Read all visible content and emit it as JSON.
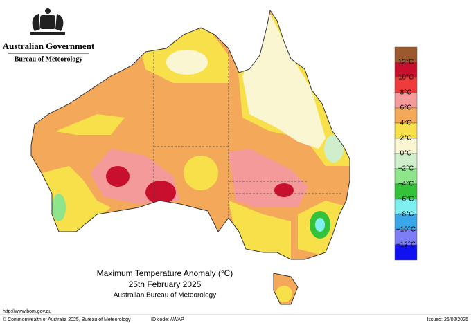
{
  "header": {
    "government": "Australian Government",
    "agency": "Bureau of Meteorology"
  },
  "map": {
    "title": "Maximum Temperature Anomaly (°C)",
    "date": "25th February 2025",
    "source": "Australian Bureau of Meteorology"
  },
  "legend": {
    "colors": [
      "#9b5a2e",
      "#c8102e",
      "#ee3b3b",
      "#f49a9a",
      "#f4a95a",
      "#f8e04a",
      "#fbf6d2",
      "#cfeecb",
      "#8ee58c",
      "#33c23a",
      "#7ff0f0",
      "#3aa8e8",
      "#7d7df5",
      "#1010f0"
    ],
    "labels": [
      "12°C",
      "10°C",
      "8°C",
      "6°C",
      "4°C",
      "2°C",
      "0°C",
      "−2°C",
      "−4°C",
      "−6°C",
      "−8°C",
      "−10°C",
      "−12°C"
    ]
  },
  "footer": {
    "url": "http://www.bom.gov.au",
    "copyright": "© Commonwealth of Australia 2025, Bureau of Meteorology",
    "id_code": "ID code: AWAP",
    "issued": "Issued: 26/02/2025"
  }
}
